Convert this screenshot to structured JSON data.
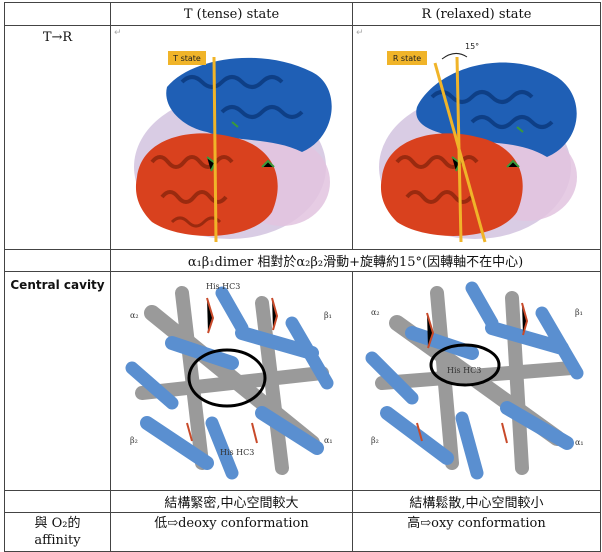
{
  "header": {
    "col1": "",
    "t_state": "T (tense) state",
    "r_state": "R (relaxed) state"
  },
  "row_transition": {
    "label": "T→R",
    "t_tag": "T state",
    "r_tag": "R state",
    "angle": "15°"
  },
  "caption_row": {
    "text": "α₁β₁dimer 相對於α₂β₂滑動+旋轉約15°(因轉軸不在中心)"
  },
  "row_cavity": {
    "label": "Central cavity",
    "t_labels": {
      "a2": "α₂",
      "b1": "β₁",
      "b2": "β₂",
      "a1": "α₁",
      "his_top": "His HC3",
      "his_bottom": "His HC3"
    },
    "r_labels": {
      "a2": "α₂",
      "b1": "β₁",
      "b2": "β₂",
      "a1": "α₁",
      "his": "His HC3"
    }
  },
  "row_structure": {
    "t_text": "結構緊密,中心空間較大",
    "r_text": "結構鬆散,中心空間較小"
  },
  "row_affinity": {
    "label_line1": "與 O₂的",
    "label_line2": "affinity",
    "t_text": "低⇨deoxy conformation",
    "r_text": "高⇨oxy conformation"
  },
  "colors": {
    "red_helix": "#d9411e",
    "blue_helix": "#1f5fb5",
    "gold_axis": "#f0b429",
    "grey_cyl": "#9a9a9a",
    "blue_cyl": "#5a8fd0"
  }
}
